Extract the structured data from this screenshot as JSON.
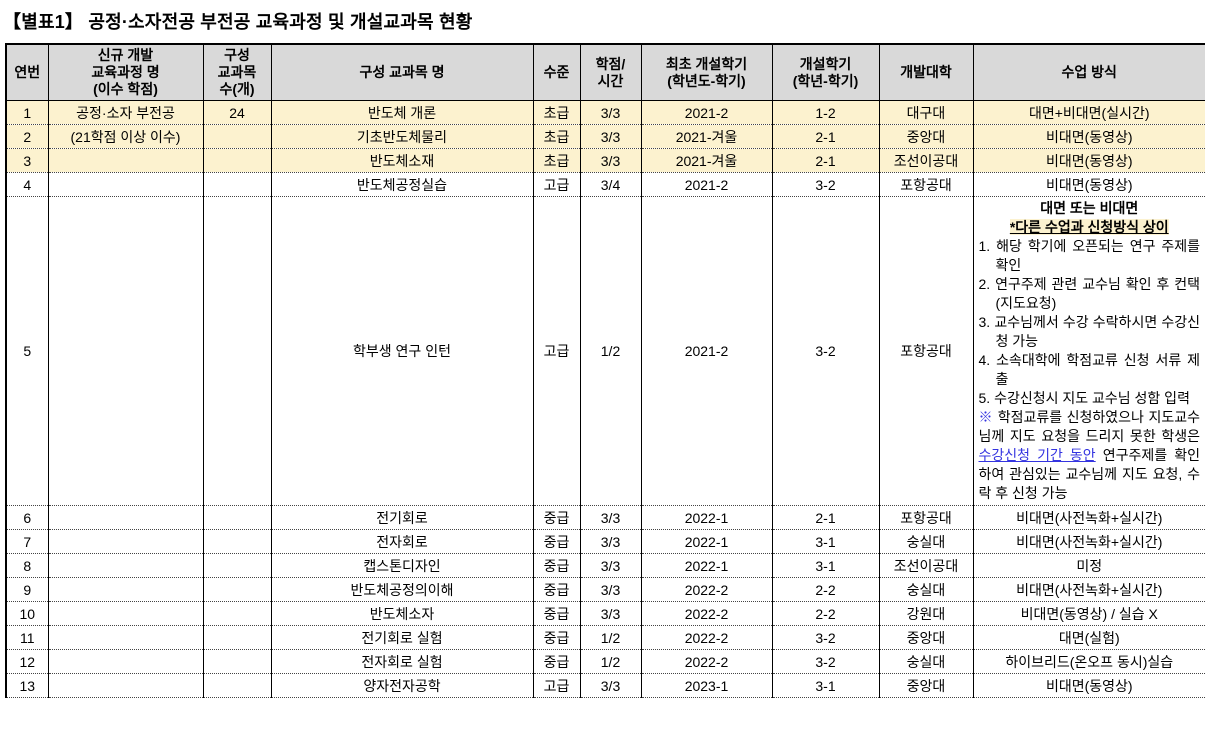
{
  "title": "【별표1】 공정·소자전공 부전공 교육과정 및 개설교과목 현황",
  "colors": {
    "header_bg": "#d9d9d9",
    "highlight_row_bg": "#fcf2cf",
    "accent_blue": "#3434e0"
  },
  "table": {
    "headers": [
      {
        "label": "연번"
      },
      {
        "label": "신규 개발\n교육과정 명\n(이수 학점)"
      },
      {
        "label": "구성\n교과목\n수(개)"
      },
      {
        "label": "구성 교과목 명"
      },
      {
        "label": "수준"
      },
      {
        "label": "학점/\n시간"
      },
      {
        "label": "최초 개설학기\n(학년도-학기)"
      },
      {
        "label": "개설학기\n(학년-학기)"
      },
      {
        "label": "개발대학"
      },
      {
        "label": "수업 방식"
      }
    ],
    "rows": [
      {
        "no": "1",
        "program": "공정·소자 부전공",
        "count": "24",
        "course": "반도체 개론",
        "level": "초급",
        "credit": "3/3",
        "first_semester": "2021-2",
        "open_semester": "1-2",
        "university": "대구대",
        "method": "대면+비대면(실시간)",
        "highlight": true
      },
      {
        "no": "2",
        "program": "(21학점 이상 이수)",
        "count": "",
        "course": "기초반도체물리",
        "level": "초급",
        "credit": "3/3",
        "first_semester": "2021-겨울",
        "open_semester": "2-1",
        "university": "중앙대",
        "method": "비대면(동영상)",
        "highlight": true
      },
      {
        "no": "3",
        "program": "",
        "count": "",
        "course": "반도체소재",
        "level": "초급",
        "credit": "3/3",
        "first_semester": "2021-겨울",
        "open_semester": "2-1",
        "university": "조선이공대",
        "method": "비대면(동영상)",
        "highlight": true
      },
      {
        "no": "4",
        "program": "",
        "count": "",
        "course": "반도체공정실습",
        "level": "고급",
        "credit": "3/4",
        "first_semester": "2021-2",
        "open_semester": "3-2",
        "university": "포항공대",
        "method": "비대면(동영상)",
        "highlight": false
      },
      {
        "no": "5",
        "program": "",
        "count": "",
        "course": "학부생 연구 인턴",
        "level": "고급",
        "credit": "1/2",
        "first_semester": "2021-2",
        "open_semester": "3-2",
        "university": "포항공대",
        "highlight": false,
        "method": {
          "heading": "대면 또는 비대면",
          "subheading": "*다른 수업과 신청방식 상이",
          "steps": [
            "1. 해당 학기에 오픈되는 연구 주제를 확인",
            "2. 연구주제 관련 교수님 확인 후 컨택(지도요청)",
            "3. 교수님께서 수강 수락하시면 수강신청 가능",
            "4. 소속대학에 학점교류 신청 서류 제출",
            "5. 수강신청시 지도 교수님 성함 입력"
          ],
          "note_marker": "※",
          "note_before": " 학점교류를 신청하였으나 지도교수님께 지도 요청을 드리지 못한 학생은 ",
          "note_blue": "수강신청 기간 동안",
          "note_after": " 연구주제를 확인하여 관심있는 교수님께 지도 요청, 수락 후 신청 가능"
        }
      },
      {
        "no": "6",
        "program": "",
        "count": "",
        "course": "전기회로",
        "level": "중급",
        "credit": "3/3",
        "first_semester": "2022-1",
        "open_semester": "2-1",
        "university": "포항공대",
        "method": "비대면(사전녹화+실시간)",
        "highlight": false
      },
      {
        "no": "7",
        "program": "",
        "count": "",
        "course": "전자회로",
        "level": "중급",
        "credit": "3/3",
        "first_semester": "2022-1",
        "open_semester": "3-1",
        "university": "숭실대",
        "method": "비대면(사전녹화+실시간)",
        "highlight": false
      },
      {
        "no": "8",
        "program": "",
        "count": "",
        "course": "캡스톤디자인",
        "level": "중급",
        "credit": "3/3",
        "first_semester": "2022-1",
        "open_semester": "3-1",
        "university": "조선이공대",
        "method": "미정",
        "highlight": false
      },
      {
        "no": "9",
        "program": "",
        "count": "",
        "course": "반도체공정의이해",
        "level": "중급",
        "credit": "3/3",
        "first_semester": "2022-2",
        "open_semester": "2-2",
        "university": "숭실대",
        "method": "비대면(사전녹화+실시간)",
        "highlight": false
      },
      {
        "no": "10",
        "program": "",
        "count": "",
        "course": "반도체소자",
        "level": "중급",
        "credit": "3/3",
        "first_semester": "2022-2",
        "open_semester": "2-2",
        "university": "강원대",
        "method": "비대면(동영상) / 실습 X",
        "highlight": false
      },
      {
        "no": "11",
        "program": "",
        "count": "",
        "course": "전기회로 실험",
        "level": "중급",
        "credit": "1/2",
        "first_semester": "2022-2",
        "open_semester": "3-2",
        "university": "중앙대",
        "method": "대면(실험)",
        "highlight": false
      },
      {
        "no": "12",
        "program": "",
        "count": "",
        "course": "전자회로 실험",
        "level": "중급",
        "credit": "1/2",
        "first_semester": "2022-2",
        "open_semester": "3-2",
        "university": "숭실대",
        "method": "하이브리드(온오프 동시)실습",
        "highlight": false
      },
      {
        "no": "13",
        "program": "",
        "count": "",
        "course": "양자전자공학",
        "level": "고급",
        "credit": "3/3",
        "first_semester": "2023-1",
        "open_semester": "3-1",
        "university": "중앙대",
        "method": "비대면(동영상)",
        "highlight": false
      }
    ]
  }
}
